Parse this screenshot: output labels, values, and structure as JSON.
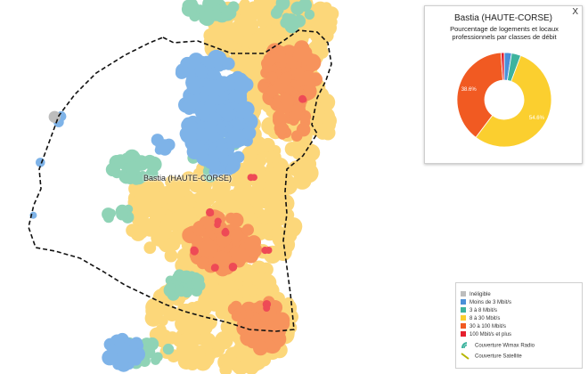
{
  "map": {
    "city_label": "Bastia (HAUTE-CORSE)",
    "colors": {
      "ineligible": "#bdbdbd",
      "lt3": "#7eb3e8",
      "3to8": "#8fd3b6",
      "8to30": "#fcd77a",
      "30to100": "#f7935c",
      "100plus": "#ee4a56"
    }
  },
  "popup": {
    "close": "X",
    "title": "Bastia (HAUTE-CORSE)",
    "subtitle": "Pourcentage de logements et locaux professionnels par classes de débit"
  },
  "chart_data": {
    "type": "pie",
    "title": "Pourcentage de logements et locaux professionnels par classes de débit",
    "slices": [
      {
        "name": "Moins de 3 Mbit/s",
        "value": 2.5,
        "color": "#4a90d9",
        "label": ""
      },
      {
        "name": "3 à 8 Mbit/s",
        "value": 3.2,
        "color": "#3db39e",
        "label": ""
      },
      {
        "name": "8 à 30 Mbit/s",
        "value": 54.6,
        "color": "#fbcf2f",
        "label": "54.6%"
      },
      {
        "name": "30 à 100 Mbit/s",
        "value": 38.6,
        "color": "#f15a22",
        "label": "38.6%"
      },
      {
        "name": "100 Mbit/s et plus",
        "value": 1.1,
        "color": "#e5202e",
        "label": ""
      }
    ]
  },
  "legend": {
    "items": [
      {
        "label": "Inéligible",
        "color": "#bdbdbd"
      },
      {
        "label": "Moins de 3 Mbit/s",
        "color": "#4a90d9"
      },
      {
        "label": "3 à 8 Mbit/s",
        "color": "#3db39e"
      },
      {
        "label": "8 à 30 Mbit/s",
        "color": "#fbcf2f"
      },
      {
        "label": "30 à 100 Mbit/s",
        "color": "#f15a22"
      },
      {
        "label": "100 Mbit/s et plus",
        "color": "#e5202e"
      }
    ],
    "wimax_label": "Couverture Wimax Radio",
    "satellite_label": "Couverture Satellite"
  }
}
